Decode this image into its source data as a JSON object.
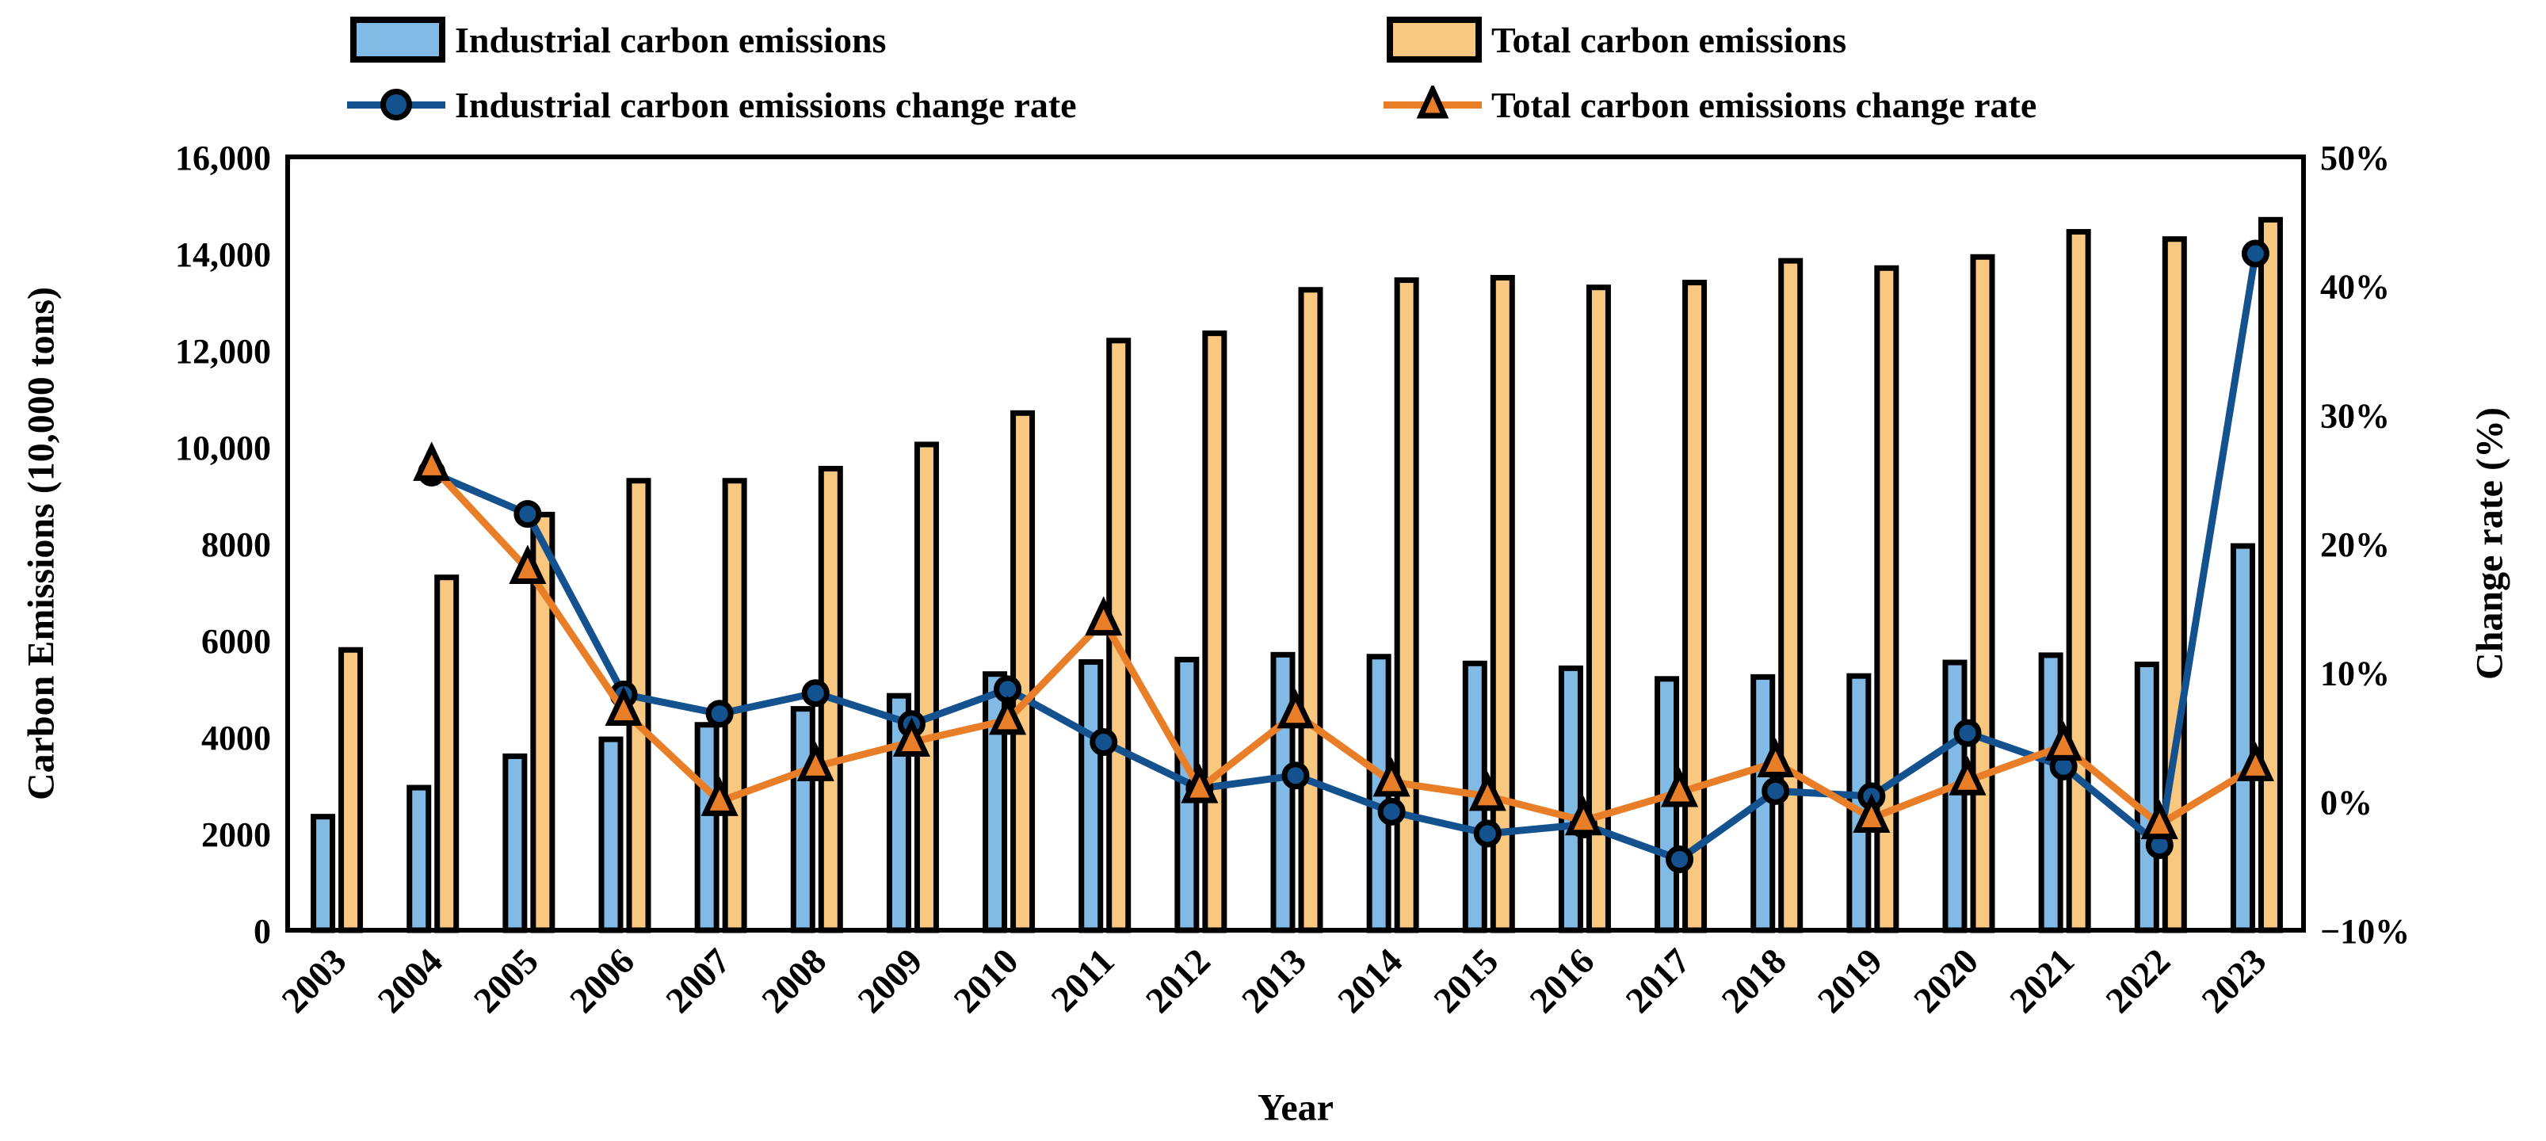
{
  "figure": {
    "kind": "combo bar-line chart",
    "background": "#ffffff"
  },
  "colors": {
    "bar_blue": "#82BAE6",
    "bar_orange": "#F8C780",
    "line_blue": "#14528F",
    "line_orange": "#E87E28",
    "outline": "#000000"
  },
  "legend": {
    "industrial_bar_label": "Industrial carbon emissions",
    "total_bar_label": "Total carbon emissions",
    "industrial_rate_label": "Industrial carbon emissions change rate",
    "total_rate_label": "Total carbon emissions change rate"
  },
  "axes": {
    "left": {
      "title": "Carbon Emissions (10,000 tons)",
      "tick_values": [
        0,
        2000,
        4000,
        6000,
        8000,
        10000,
        12000,
        14000,
        16000
      ],
      "tick_labels": [
        "0",
        "2000",
        "4000",
        "6000",
        "8000",
        "10,000",
        "12,000",
        "14,000",
        "16,000"
      ]
    },
    "right": {
      "title": "Change rate (%)",
      "tick_values": [
        -10,
        0,
        10,
        20,
        30,
        40,
        50
      ],
      "tick_labels": [
        "−10%",
        "0%",
        "10%",
        "20%",
        "30%",
        "40%",
        "50%"
      ]
    },
    "x": {
      "title": "Year"
    }
  },
  "chart_data": {
    "type": "bar+line",
    "categories": [
      "2003",
      "2004",
      "2005",
      "2006",
      "2007",
      "2008",
      "2009",
      "2010",
      "2011",
      "2012",
      "2013",
      "2014",
      "2015",
      "2016",
      "2017",
      "2018",
      "2019",
      "2020",
      "2021",
      "2022",
      "2023"
    ],
    "ylim_left": [
      0,
      16000
    ],
    "ylim_right": [
      -10,
      50
    ],
    "grid": false,
    "legend_position": "top",
    "series": [
      {
        "name": "Industrial carbon emissions",
        "type": "bar",
        "axis": "left",
        "color_key": "bar_blue",
        "values": [
          2350,
          2950,
          3600,
          3950,
          4250,
          4580,
          4850,
          5300,
          5550,
          5600,
          5700,
          5660,
          5520,
          5420,
          5200,
          5240,
          5260,
          5540,
          5690,
          5500,
          7950
        ]
      },
      {
        "name": "Total carbon emissions",
        "type": "bar",
        "axis": "left",
        "color_key": "bar_orange",
        "values": [
          5800,
          7300,
          8600,
          9300,
          9300,
          9550,
          10050,
          10700,
          12200,
          12350,
          13250,
          13450,
          13500,
          13300,
          13400,
          13850,
          13700,
          13930,
          14450,
          14300,
          14700
        ]
      },
      {
        "name": "Industrial carbon emissions change rate",
        "type": "line",
        "marker": "circle",
        "axis": "right",
        "color_key": "line_blue",
        "values": [
          null,
          25.5,
          22.3,
          8.3,
          6.8,
          8.4,
          6.0,
          8.7,
          4.6,
          1.0,
          2.0,
          -0.8,
          -2.5,
          -1.8,
          -4.5,
          0.8,
          0.4,
          5.3,
          2.7,
          -3.4,
          42.5
        ]
      },
      {
        "name": "Total carbon emissions change rate",
        "type": "line",
        "marker": "triangle",
        "axis": "right",
        "color_key": "line_orange",
        "values": [
          null,
          26.0,
          18.0,
          7.0,
          0.0,
          2.7,
          4.6,
          6.3,
          14.0,
          1.0,
          6.8,
          1.5,
          0.4,
          -1.5,
          0.7,
          3.0,
          -1.3,
          1.6,
          4.3,
          -1.8,
          2.7
        ]
      }
    ]
  }
}
